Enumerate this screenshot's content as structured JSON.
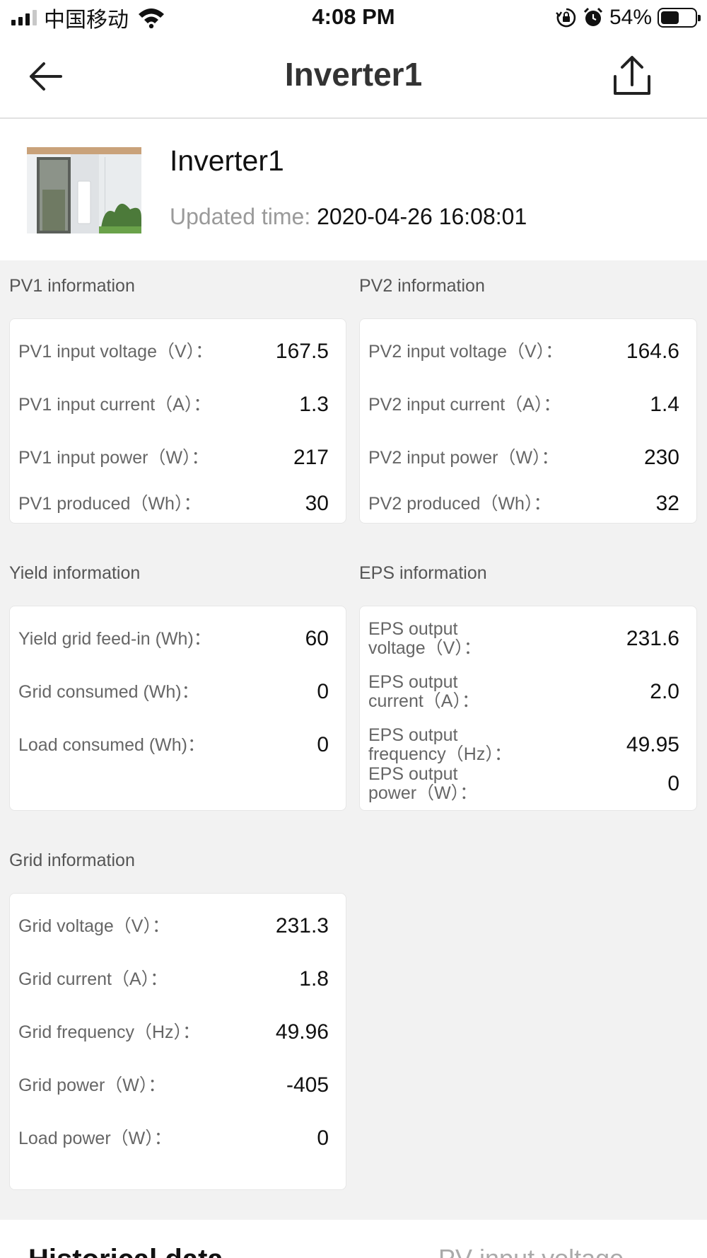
{
  "status_bar": {
    "carrier": "中国移动",
    "time": "4:08 PM",
    "battery_percent": "54%",
    "battery_level": 0.54,
    "icons": [
      "signal-icon",
      "wifi-icon",
      "orientation-lock-icon",
      "alarm-icon",
      "battery-icon"
    ]
  },
  "nav": {
    "title": "Inverter1",
    "back_icon": "arrow-left-icon",
    "share_icon": "share-icon"
  },
  "device": {
    "name": "Inverter1",
    "updated_label": "Updated time:",
    "updated_value": "2020-04-26 16:08:01"
  },
  "sections": {
    "pv1": {
      "title": "PV1 information",
      "rows": [
        {
          "label": "PV1 input voltage（V）：",
          "value": "167.5"
        },
        {
          "label": "PV1 input current（A）：",
          "value": "1.3"
        },
        {
          "label": "PV1 input power（W）：",
          "value": "217"
        },
        {
          "label": "PV1 produced（Wh）：",
          "value": "30"
        }
      ]
    },
    "pv2": {
      "title": "PV2 information",
      "rows": [
        {
          "label": "PV2 input voltage（V）：",
          "value": "164.6"
        },
        {
          "label": "PV2 input current（A）：",
          "value": "1.4"
        },
        {
          "label": "PV2 input power（W）：",
          "value": "230"
        },
        {
          "label": "PV2 produced（Wh）：",
          "value": "32"
        }
      ]
    },
    "yield": {
      "title": "Yield information",
      "rows": [
        {
          "label": "Yield grid feed-in (Wh)：",
          "value": "60"
        },
        {
          "label": "Grid consumed (Wh)：",
          "value": "0"
        },
        {
          "label": "Load consumed (Wh)：",
          "value": "0"
        }
      ]
    },
    "eps": {
      "title": "EPS information",
      "rows": [
        {
          "label_line1": "EPS output",
          "label_line2": "voltage（V）：",
          "value": "231.6"
        },
        {
          "label_line1": "EPS output",
          "label_line2": "current（A）：",
          "value": "2.0"
        },
        {
          "label_line1": "EPS output",
          "label_line2": "frequency（Hz）：",
          "value": "49.95"
        },
        {
          "label_line1": "EPS output",
          "label_line2": "power（W）：",
          "value": "0"
        }
      ]
    },
    "grid": {
      "title": "Grid information",
      "rows": [
        {
          "label": "Grid voltage（V）：",
          "value": "231.3"
        },
        {
          "label": "Grid current（A）：",
          "value": "1.8"
        },
        {
          "label": "Grid frequency（Hz）：",
          "value": "49.96"
        },
        {
          "label": "Grid power（W）：",
          "value": "-405"
        },
        {
          "label": "Load power（W）：",
          "value": "0"
        }
      ]
    }
  },
  "historical": {
    "title": "Historical data",
    "selector": "PV input voltage"
  }
}
